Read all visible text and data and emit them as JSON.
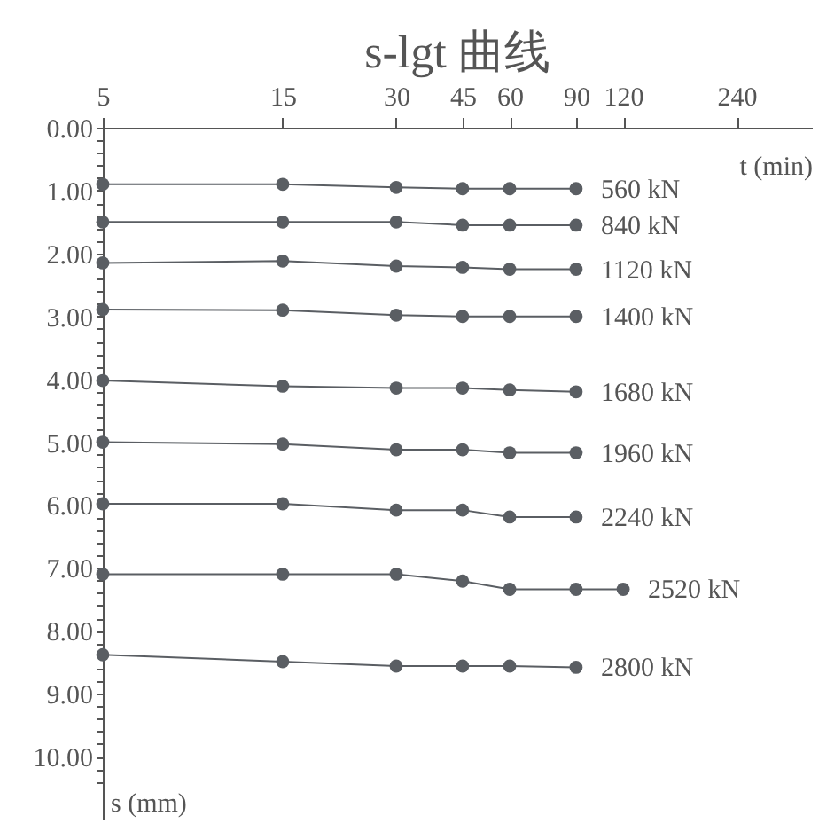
{
  "chart_data": {
    "type": "line",
    "title": "s-lgt  曲线",
    "xlabel": "t (min)",
    "ylabel": "s (mm)",
    "x": [
      5,
      15,
      30,
      45,
      60,
      90
    ],
    "series": [
      {
        "name": "560 kN",
        "color": "#5a5e63",
        "values": [
          0.9,
          0.9,
          0.95,
          0.97,
          0.97,
          0.97
        ]
      },
      {
        "name": "840 kN",
        "color": "#5a5e63",
        "values": [
          1.5,
          1.5,
          1.5,
          1.55,
          1.55,
          1.55
        ]
      },
      {
        "name": "1120 kN",
        "color": "#5a5e63",
        "values": [
          2.15,
          2.12,
          2.2,
          2.22,
          2.25,
          2.25
        ]
      },
      {
        "name": "1400 kN",
        "color": "#5a5e63",
        "values": [
          2.89,
          2.9,
          2.98,
          3.0,
          3.0,
          3.0
        ]
      },
      {
        "name": "1680 kN",
        "color": "#5a5e63",
        "values": [
          4.02,
          4.11,
          4.14,
          4.14,
          4.17,
          4.2
        ]
      },
      {
        "name": "1960 kN",
        "color": "#5a5e63",
        "values": [
          5.0,
          5.03,
          5.12,
          5.12,
          5.17,
          5.17
        ]
      },
      {
        "name": "2240 kN",
        "color": "#5a5e63",
        "values": [
          5.98,
          5.98,
          6.08,
          6.08,
          6.19,
          6.19
        ]
      },
      {
        "name": "2520 kN",
        "color": "#5a5e63",
        "x": [
          5,
          15,
          30,
          45,
          60,
          90,
          120
        ],
        "values": [
          7.1,
          7.1,
          7.1,
          7.21,
          7.34,
          7.34,
          7.34
        ]
      },
      {
        "name": "2800 kN",
        "color": "#5a5e63",
        "values": [
          8.38,
          8.49,
          8.56,
          8.56,
          8.56,
          8.58
        ]
      }
    ],
    "log": "x",
    "xlim": [
      5,
      380
    ],
    "xticks": [
      5,
      15,
      30,
      45,
      60,
      90,
      120,
      240
    ],
    "ylim": [
      11,
      0
    ],
    "yticks": [
      {
        "value": 0,
        "label": "0.00"
      },
      {
        "value": 0.2,
        "label": null
      },
      {
        "value": 0.4,
        "label": null
      },
      {
        "value": 0.6,
        "label": null
      },
      {
        "value": 0.8,
        "label": null
      },
      {
        "value": 1,
        "label": "1.00"
      },
      {
        "value": 1.2,
        "label": null
      },
      {
        "value": 1.4,
        "label": null
      },
      {
        "value": 1.6,
        "label": null
      },
      {
        "value": 1.8,
        "label": null
      },
      {
        "value": 2,
        "label": "2.00"
      },
      {
        "value": 2.2,
        "label": null
      },
      {
        "value": 2.4,
        "label": null
      },
      {
        "value": 2.6,
        "label": null
      },
      {
        "value": 2.8,
        "label": null
      },
      {
        "value": 3,
        "label": "3.00"
      },
      {
        "value": 3.2,
        "label": null
      },
      {
        "value": 3.4,
        "label": null
      },
      {
        "value": 3.6,
        "label": null
      },
      {
        "value": 3.8,
        "label": null
      },
      {
        "value": 4,
        "label": "4.00"
      },
      {
        "value": 4.2,
        "label": null
      },
      {
        "value": 4.4,
        "label": null
      },
      {
        "value": 4.6,
        "label": null
      },
      {
        "value": 4.8,
        "label": null
      },
      {
        "value": 5,
        "label": "5.00"
      },
      {
        "value": 5.2,
        "label": null
      },
      {
        "value": 5.4,
        "label": null
      },
      {
        "value": 5.6,
        "label": null
      },
      {
        "value": 5.8,
        "label": null
      },
      {
        "value": 6,
        "label": "6.00"
      },
      {
        "value": 6.2,
        "label": null
      },
      {
        "value": 6.4,
        "label": null
      },
      {
        "value": 6.6,
        "label": null
      },
      {
        "value": 6.8,
        "label": null
      },
      {
        "value": 7,
        "label": "7.00"
      },
      {
        "value": 7.2,
        "label": null
      },
      {
        "value": 7.4,
        "label": null
      },
      {
        "value": 7.6,
        "label": null
      },
      {
        "value": 7.8,
        "label": null
      },
      {
        "value": 8,
        "label": "8.00"
      },
      {
        "value": 8.2,
        "label": null
      },
      {
        "value": 8.4,
        "label": null
      },
      {
        "value": 8.6,
        "label": null
      },
      {
        "value": 8.8,
        "label": null
      },
      {
        "value": 9,
        "label": "9.00"
      },
      {
        "value": 9.2,
        "label": null
      },
      {
        "value": 9.4,
        "label": null
      },
      {
        "value": 9.6,
        "label": null
      },
      {
        "value": 9.8,
        "label": null
      },
      {
        "value": 10,
        "label": "10.00"
      },
      {
        "value": 10.2,
        "label": null
      },
      {
        "value": 10.4,
        "label": null
      }
    ],
    "marker": "circle",
    "line_style": "solid",
    "grid": false,
    "legend": false
  }
}
